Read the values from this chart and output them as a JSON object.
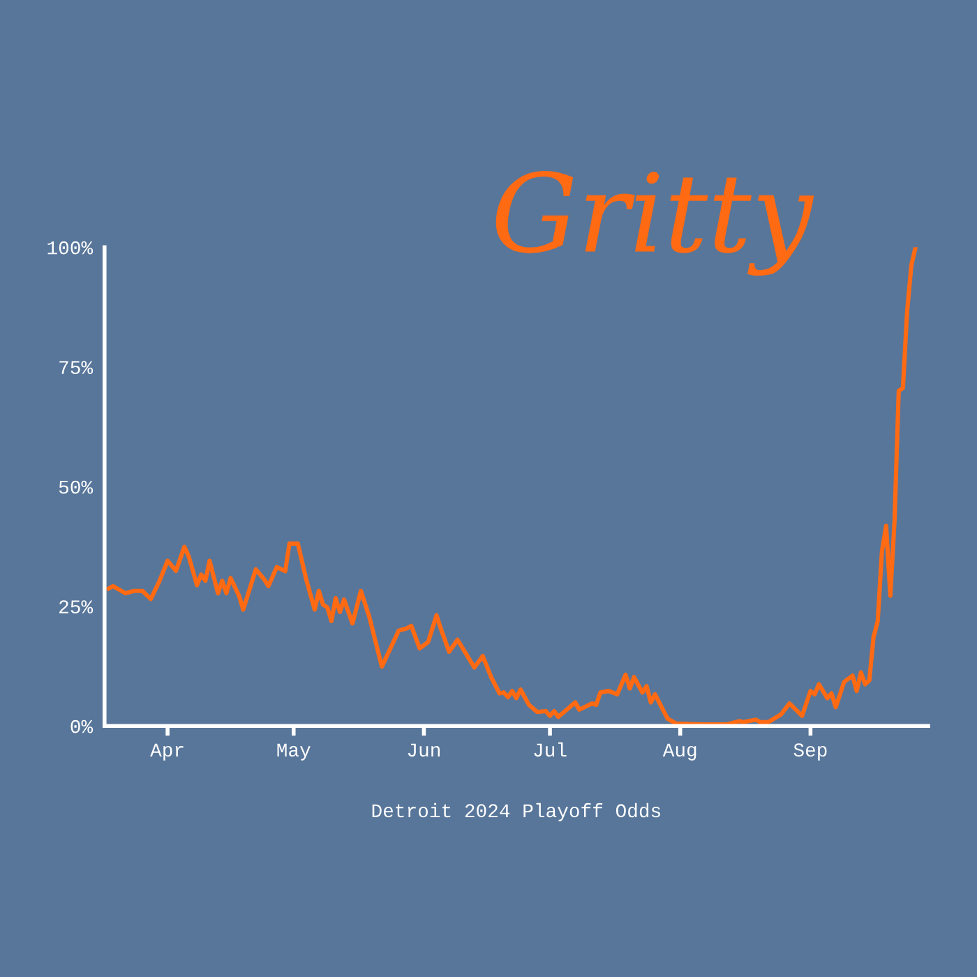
{
  "chart_data": {
    "type": "line",
    "title": "Gritty",
    "xlabel": "Detroit 2024 Playoff Odds",
    "x": [
      "2024-03-18",
      "2024-03-19",
      "2024-03-22",
      "2024-03-24",
      "2024-03-26",
      "2024-03-28",
      "2024-03-30",
      "2024-04-01",
      "2024-04-03",
      "2024-04-05",
      "2024-04-06",
      "2024-04-08",
      "2024-04-09",
      "2024-04-10",
      "2024-04-11",
      "2024-04-13",
      "2024-04-14",
      "2024-04-15",
      "2024-04-16",
      "2024-04-18",
      "2024-04-19",
      "2024-04-22",
      "2024-04-24",
      "2024-04-25",
      "2024-04-27",
      "2024-04-29",
      "2024-04-30",
      "2024-05-02",
      "2024-05-04",
      "2024-05-06",
      "2024-05-07",
      "2024-05-08",
      "2024-05-09",
      "2024-05-10",
      "2024-05-11",
      "2024-05-12",
      "2024-05-13",
      "2024-05-15",
      "2024-05-17",
      "2024-05-19",
      "2024-05-22",
      "2024-05-26",
      "2024-05-28",
      "2024-05-29",
      "2024-05-31",
      "2024-06-02",
      "2024-06-04",
      "2024-06-05",
      "2024-06-07",
      "2024-06-09",
      "2024-06-11",
      "2024-06-13",
      "2024-06-15",
      "2024-06-17",
      "2024-06-19",
      "2024-06-20",
      "2024-06-21",
      "2024-06-22",
      "2024-06-23",
      "2024-06-24",
      "2024-06-26",
      "2024-06-28",
      "2024-06-30",
      "2024-07-01",
      "2024-07-02",
      "2024-07-03",
      "2024-07-07",
      "2024-07-08",
      "2024-07-11",
      "2024-07-12",
      "2024-07-13",
      "2024-07-15",
      "2024-07-17",
      "2024-07-19",
      "2024-07-20",
      "2024-07-21",
      "2024-07-23",
      "2024-07-24",
      "2024-07-25",
      "2024-07-26",
      "2024-07-29",
      "2024-07-31",
      "2024-08-06",
      "2024-08-12",
      "2024-08-15",
      "2024-08-16",
      "2024-08-19",
      "2024-08-20",
      "2024-08-22",
      "2024-08-25",
      "2024-08-27",
      "2024-08-30",
      "2024-09-01",
      "2024-09-02",
      "2024-09-03",
      "2024-09-05",
      "2024-09-06",
      "2024-09-07",
      "2024-09-09",
      "2024-09-11",
      "2024-09-12",
      "2024-09-13",
      "2024-09-14",
      "2024-09-15",
      "2024-09-16",
      "2024-09-17",
      "2024-09-18",
      "2024-09-19",
      "2024-09-20",
      "2024-09-21",
      "2024-09-22",
      "2024-09-23",
      "2024-09-24",
      "2024-09-25",
      "2024-09-26"
    ],
    "series": [
      {
        "color": "#ff6a13",
        "values": [
          28.7,
          29.2,
          27.7,
          28.2,
          28.2,
          26.5,
          30.1,
          34.5,
          32.4,
          37.4,
          35.5,
          29.4,
          31.6,
          30.3,
          34.5,
          27.7,
          30.3,
          27.7,
          30.9,
          27.2,
          24.3,
          32.7,
          30.6,
          29.2,
          33.2,
          32.3,
          38.1,
          38.1,
          30.6,
          24.3,
          28.2,
          25.3,
          24.8,
          21.9,
          26.7,
          23.8,
          26.4,
          21.4,
          28.2,
          22.8,
          12.4,
          19.9,
          20.4,
          20.9,
          16.2,
          17.5,
          23.1,
          20.4,
          15.5,
          18.0,
          15.1,
          12.2,
          14.6,
          10.2,
          6.8,
          7.0,
          6.0,
          7.3,
          5.8,
          7.6,
          4.4,
          2.9,
          3.1,
          2.1,
          3.1,
          1.9,
          4.9,
          3.4,
          4.7,
          4.4,
          7.0,
          7.3,
          6.6,
          10.7,
          7.8,
          10.2,
          7.0,
          8.3,
          4.9,
          6.6,
          1.5,
          0.5,
          0.3,
          0.3,
          1.0,
          0.8,
          1.3,
          0.8,
          0.8,
          2.4,
          4.7,
          2.1,
          7.3,
          6.6,
          8.7,
          5.8,
          6.8,
          3.9,
          9.2,
          10.5,
          7.3,
          11.2,
          8.7,
          9.5,
          18.5,
          21.9,
          36.4,
          41.8,
          27.2,
          42.9,
          70.0,
          70.6,
          86.6,
          96.2,
          100
        ]
      }
    ],
    "xlim": [
      "2024-03-17",
      "2024-09-29"
    ],
    "xticks": [
      {
        "value": "2024-04-01",
        "label": "Apr"
      },
      {
        "value": "2024-05-01",
        "label": "May"
      },
      {
        "value": "2024-06-01",
        "label": "Jun"
      },
      {
        "value": "2024-07-01",
        "label": "Jul"
      },
      {
        "value": "2024-08-01",
        "label": "Aug"
      },
      {
        "value": "2024-09-01",
        "label": "Sep"
      }
    ],
    "ylim": [
      0,
      100
    ],
    "yticks": [
      {
        "value": 0,
        "label": "0%"
      },
      {
        "value": 25,
        "label": "25%"
      },
      {
        "value": 50,
        "label": "50%"
      },
      {
        "value": 75,
        "label": "75%"
      },
      {
        "value": 100,
        "label": "100%"
      }
    ],
    "grid": false,
    "legend": false
  }
}
